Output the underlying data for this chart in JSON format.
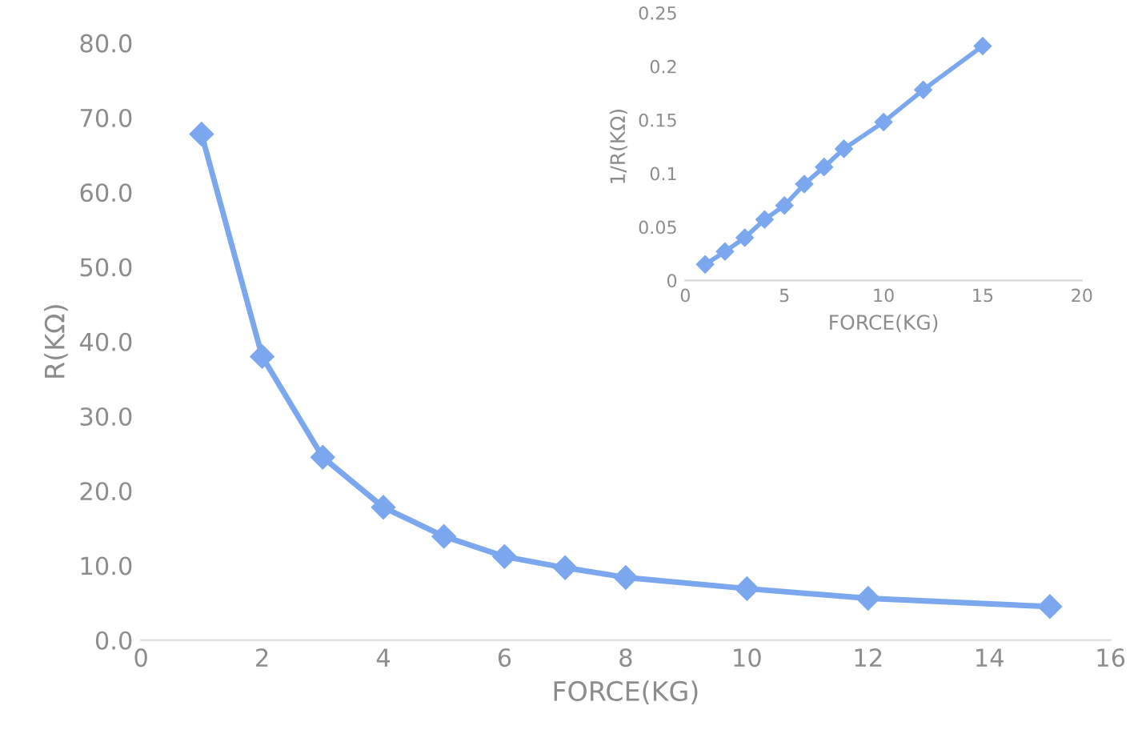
{
  "chart_data": [
    {
      "type": "line",
      "xlabel": "FORCE(KG)",
      "ylabel": "R(KΩ)",
      "x": [
        1,
        2,
        3,
        4,
        5,
        6,
        7,
        8,
        10,
        12,
        15
      ],
      "series": [
        {
          "color": "#7ba7ef",
          "values": [
            67.8,
            38.0,
            24.5,
            17.8,
            13.9,
            11.2,
            9.7,
            8.4,
            6.9,
            5.6,
            4.5
          ]
        }
      ],
      "xlim": [
        0,
        16
      ],
      "xticks": [
        0,
        2,
        4,
        6,
        8,
        10,
        12,
        14,
        16
      ],
      "ylim": [
        0,
        80
      ],
      "yticks": [
        {
          "value": 0,
          "label": "0.0"
        },
        {
          "value": 10,
          "label": "10.0"
        },
        {
          "value": 20,
          "label": "20.0"
        },
        {
          "value": 30,
          "label": "30.0"
        },
        {
          "value": 40,
          "label": "40.0"
        },
        {
          "value": 50,
          "label": "50.0"
        },
        {
          "value": 60,
          "label": "60.0"
        },
        {
          "value": 70,
          "label": "70.0"
        },
        {
          "value": 80,
          "label": "80.0"
        }
      ],
      "marker": "diamond",
      "line_style": "solid",
      "grid": false,
      "legend": false
    },
    {
      "type": "line",
      "xlabel": "FORCE(KG)",
      "ylabel": "1/R(KΩ)",
      "x": [
        1,
        2,
        3,
        4,
        5,
        6,
        7,
        8,
        10,
        12,
        15
      ],
      "series": [
        {
          "color": "#7ba7ef",
          "values": [
            0.015,
            0.027,
            0.04,
            0.057,
            0.07,
            0.09,
            0.106,
            0.123,
            0.148,
            0.178,
            0.219
          ]
        }
      ],
      "xlim": [
        0,
        20
      ],
      "xticks": [
        0,
        5,
        10,
        15,
        20
      ],
      "ylim": [
        0,
        0.25
      ],
      "yticks": [
        0,
        0.05,
        0.1,
        0.15,
        0.2,
        0.25
      ],
      "marker": "diamond",
      "line_style": "solid",
      "grid": false,
      "legend": false
    }
  ]
}
